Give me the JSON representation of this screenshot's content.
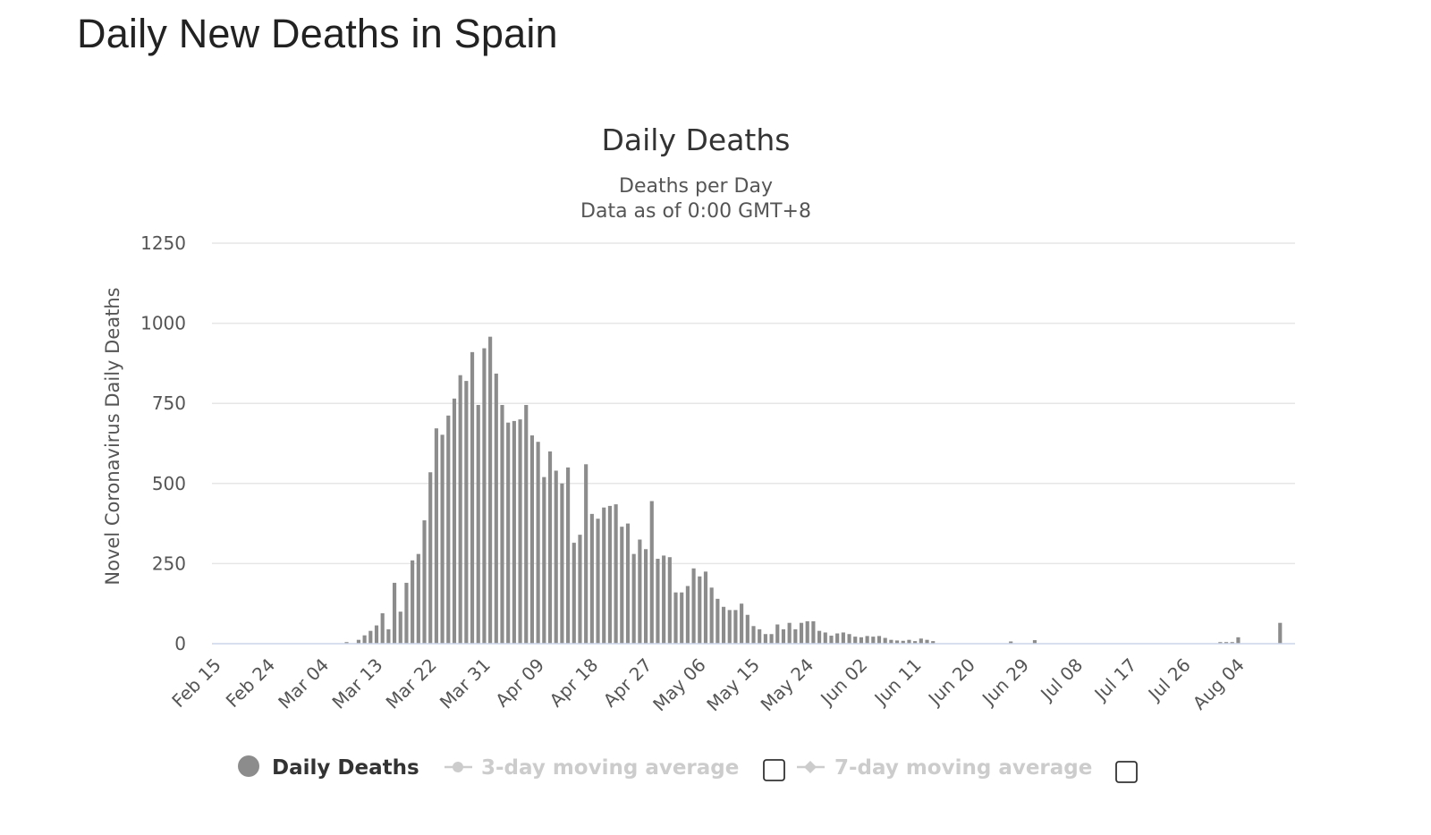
{
  "page": {
    "title": "Daily New Deaths in Spain"
  },
  "colors": {
    "bar": "#8c8c8c",
    "grid": "#e6e6e6",
    "axis": "#ccd6eb",
    "text": "#333333",
    "legend_inactive": "#cccccc"
  },
  "chart_data": {
    "type": "bar",
    "title": "Daily Deaths",
    "subtitle_lines": [
      "Deaths per Day",
      "Data as of 0:00 GMT+8"
    ],
    "xlabel": "",
    "ylabel": "Novel Coronavirus Daily Deaths",
    "ylim": [
      0,
      1250
    ],
    "yticks": [
      0,
      250,
      500,
      750,
      1000,
      1250
    ],
    "grid": true,
    "legend_position": "bottom-center",
    "start_date": "2020-02-15",
    "end_date": "2020-08-13",
    "x_tick_labels": [
      "Feb 15",
      "Feb 24",
      "Mar 04",
      "Mar 13",
      "Mar 22",
      "Mar 31",
      "Apr 09",
      "Apr 18",
      "Apr 27",
      "May 06",
      "May 15",
      "May 24",
      "Jun 02",
      "Jun 11",
      "Jun 20",
      "Jun 29",
      "Jul 08",
      "Jul 17",
      "Jul 26",
      "Aug 04"
    ],
    "series": [
      {
        "name": "Daily Deaths",
        "type": "bar",
        "color": "#8c8c8c",
        "points": [
          {
            "x": "2020-03-08",
            "y": 5
          },
          {
            "x": "2020-03-10",
            "y": 12
          },
          {
            "x": "2020-03-11",
            "y": 26
          },
          {
            "x": "2020-03-12",
            "y": 40
          },
          {
            "x": "2020-03-13",
            "y": 57
          },
          {
            "x": "2020-03-14",
            "y": 95
          },
          {
            "x": "2020-03-15",
            "y": 45
          },
          {
            "x": "2020-03-16",
            "y": 190
          },
          {
            "x": "2020-03-17",
            "y": 100
          },
          {
            "x": "2020-03-18",
            "y": 190
          },
          {
            "x": "2020-03-19",
            "y": 260
          },
          {
            "x": "2020-03-20",
            "y": 280
          },
          {
            "x": "2020-03-21",
            "y": 385
          },
          {
            "x": "2020-03-22",
            "y": 535
          },
          {
            "x": "2020-03-23",
            "y": 672
          },
          {
            "x": "2020-03-24",
            "y": 652
          },
          {
            "x": "2020-03-25",
            "y": 712
          },
          {
            "x": "2020-03-26",
            "y": 765
          },
          {
            "x": "2020-03-27",
            "y": 838
          },
          {
            "x": "2020-03-28",
            "y": 820
          },
          {
            "x": "2020-03-29",
            "y": 910
          },
          {
            "x": "2020-03-30",
            "y": 745
          },
          {
            "x": "2020-03-31",
            "y": 922
          },
          {
            "x": "2020-04-01",
            "y": 958
          },
          {
            "x": "2020-04-02",
            "y": 843
          },
          {
            "x": "2020-04-03",
            "y": 745
          },
          {
            "x": "2020-04-04",
            "y": 690
          },
          {
            "x": "2020-04-05",
            "y": 695
          },
          {
            "x": "2020-04-06",
            "y": 700
          },
          {
            "x": "2020-04-07",
            "y": 745
          },
          {
            "x": "2020-04-08",
            "y": 650
          },
          {
            "x": "2020-04-09",
            "y": 630
          },
          {
            "x": "2020-04-10",
            "y": 520
          },
          {
            "x": "2020-04-11",
            "y": 600
          },
          {
            "x": "2020-04-12",
            "y": 540
          },
          {
            "x": "2020-04-13",
            "y": 500
          },
          {
            "x": "2020-04-14",
            "y": 550
          },
          {
            "x": "2020-04-15",
            "y": 315
          },
          {
            "x": "2020-04-16",
            "y": 340
          },
          {
            "x": "2020-04-17",
            "y": 560
          },
          {
            "x": "2020-04-18",
            "y": 405
          },
          {
            "x": "2020-04-19",
            "y": 390
          },
          {
            "x": "2020-04-20",
            "y": 425
          },
          {
            "x": "2020-04-21",
            "y": 430
          },
          {
            "x": "2020-04-22",
            "y": 435
          },
          {
            "x": "2020-04-23",
            "y": 365
          },
          {
            "x": "2020-04-24",
            "y": 375
          },
          {
            "x": "2020-04-25",
            "y": 280
          },
          {
            "x": "2020-04-26",
            "y": 325
          },
          {
            "x": "2020-04-27",
            "y": 295
          },
          {
            "x": "2020-04-28",
            "y": 445
          },
          {
            "x": "2020-04-29",
            "y": 265
          },
          {
            "x": "2020-04-30",
            "y": 275
          },
          {
            "x": "2020-05-01",
            "y": 270
          },
          {
            "x": "2020-05-02",
            "y": 160
          },
          {
            "x": "2020-05-03",
            "y": 160
          },
          {
            "x": "2020-05-04",
            "y": 180
          },
          {
            "x": "2020-05-05",
            "y": 235
          },
          {
            "x": "2020-05-06",
            "y": 210
          },
          {
            "x": "2020-05-07",
            "y": 225
          },
          {
            "x": "2020-05-08",
            "y": 175
          },
          {
            "x": "2020-05-09",
            "y": 140
          },
          {
            "x": "2020-05-10",
            "y": 115
          },
          {
            "x": "2020-05-11",
            "y": 105
          },
          {
            "x": "2020-05-12",
            "y": 105
          },
          {
            "x": "2020-05-13",
            "y": 125
          },
          {
            "x": "2020-05-14",
            "y": 90
          },
          {
            "x": "2020-05-15",
            "y": 55
          },
          {
            "x": "2020-05-16",
            "y": 45
          },
          {
            "x": "2020-05-17",
            "y": 30
          },
          {
            "x": "2020-05-18",
            "y": 30
          },
          {
            "x": "2020-05-19",
            "y": 60
          },
          {
            "x": "2020-05-20",
            "y": 45
          },
          {
            "x": "2020-05-21",
            "y": 65
          },
          {
            "x": "2020-05-22",
            "y": 45
          },
          {
            "x": "2020-05-23",
            "y": 65
          },
          {
            "x": "2020-05-24",
            "y": 70
          },
          {
            "x": "2020-05-25",
            "y": 70
          },
          {
            "x": "2020-05-26",
            "y": 40
          },
          {
            "x": "2020-05-27",
            "y": 35
          },
          {
            "x": "2020-05-28",
            "y": 25
          },
          {
            "x": "2020-05-29",
            "y": 32
          },
          {
            "x": "2020-05-30",
            "y": 35
          },
          {
            "x": "2020-05-31",
            "y": 30
          },
          {
            "x": "2020-06-01",
            "y": 22
          },
          {
            "x": "2020-06-02",
            "y": 20
          },
          {
            "x": "2020-06-03",
            "y": 24
          },
          {
            "x": "2020-06-04",
            "y": 22
          },
          {
            "x": "2020-06-05",
            "y": 24
          },
          {
            "x": "2020-06-06",
            "y": 18
          },
          {
            "x": "2020-06-07",
            "y": 12
          },
          {
            "x": "2020-06-08",
            "y": 10
          },
          {
            "x": "2020-06-09",
            "y": 9
          },
          {
            "x": "2020-06-10",
            "y": 12
          },
          {
            "x": "2020-06-11",
            "y": 8
          },
          {
            "x": "2020-06-12",
            "y": 16
          },
          {
            "x": "2020-06-13",
            "y": 12
          },
          {
            "x": "2020-06-14",
            "y": 8
          },
          {
            "x": "2020-06-27",
            "y": 7
          },
          {
            "x": "2020-07-01",
            "y": 11
          },
          {
            "x": "2020-08-01",
            "y": 5
          },
          {
            "x": "2020-08-02",
            "y": 5
          },
          {
            "x": "2020-08-03",
            "y": 5
          },
          {
            "x": "2020-08-04",
            "y": 20
          },
          {
            "x": "2020-08-11",
            "y": 65
          }
        ]
      }
    ],
    "legend": [
      {
        "label": "Daily Deaths",
        "active": true,
        "marker": "circle"
      },
      {
        "label": "3-day moving average",
        "active": false,
        "marker": "line-circle",
        "checkbox": false
      },
      {
        "label": "7-day moving average",
        "active": false,
        "marker": "line-diamond",
        "checkbox": false
      }
    ]
  }
}
